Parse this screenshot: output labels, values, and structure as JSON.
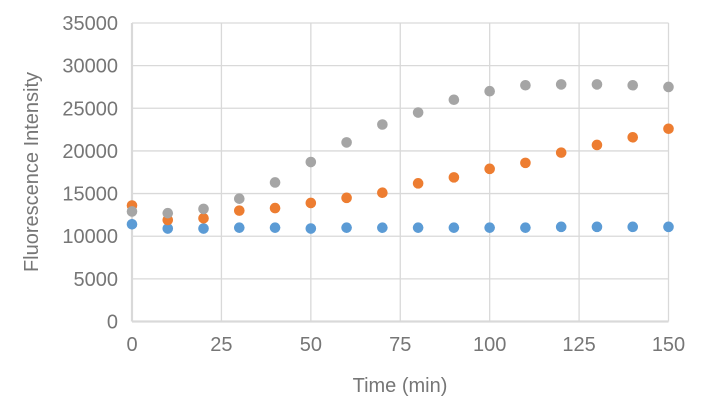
{
  "colors": {
    "background": "#FFFFFF",
    "gridline": "#D9D9D9",
    "axis_line": "#D9D9D9",
    "text": "#767676",
    "series_blue": "#5B9BD5",
    "series_orange": "#ED7D31",
    "series_gray": "#A5A5A5"
  },
  "chart_data": {
    "type": "scatter",
    "title": "",
    "xlabel": "Time (min)",
    "ylabel": "Fluorescence Intensity",
    "xlim": [
      0,
      150
    ],
    "ylim": [
      0,
      35000
    ],
    "xticks": [
      0,
      25,
      50,
      75,
      100,
      125,
      150
    ],
    "yticks": [
      0,
      5000,
      10000,
      15000,
      20000,
      25000,
      30000,
      35000
    ],
    "grid": true,
    "legend": null,
    "marker": "circle",
    "x": [
      0,
      10,
      20,
      30,
      40,
      50,
      60,
      70,
      80,
      90,
      100,
      110,
      120,
      130,
      140,
      150
    ],
    "series": [
      {
        "name": "blue",
        "color": "#5B9BD5",
        "values": [
          11400,
          10900,
          10900,
          11000,
          11000,
          10900,
          11000,
          11000,
          11000,
          11000,
          11000,
          11000,
          11100,
          11100,
          11100,
          11100
        ]
      },
      {
        "name": "orange",
        "color": "#ED7D31",
        "values": [
          13600,
          11900,
          12100,
          13000,
          13300,
          13900,
          14500,
          15100,
          16200,
          16900,
          17900,
          18600,
          19800,
          20700,
          21600,
          22600
        ]
      },
      {
        "name": "gray",
        "color": "#A5A5A5",
        "values": [
          12900,
          12700,
          13200,
          14400,
          16300,
          18700,
          21000,
          23100,
          24500,
          26000,
          27000,
          27700,
          27800,
          27800,
          27700,
          27500
        ]
      }
    ]
  }
}
